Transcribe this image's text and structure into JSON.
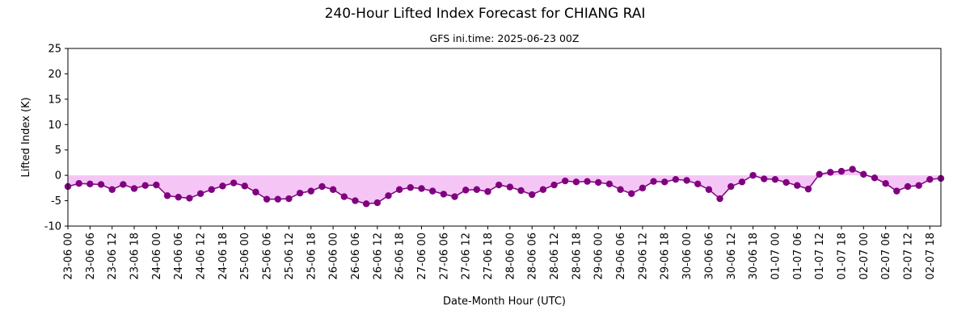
{
  "chart_data": {
    "type": "line",
    "title": "240-Hour Lifted Index Forecast for CHIANG RAI",
    "subtitle": "GFS ini.time: 2025-06-23 00Z",
    "xlabel": "Date-Month Hour (UTC)",
    "ylabel": "Lifted Index (K)",
    "ylim": [
      -10,
      25
    ],
    "yticks": [
      -10,
      -5,
      0,
      5,
      10,
      15,
      20,
      25
    ],
    "xticks": [
      "23-06 00",
      "23-06 06",
      "23-06 12",
      "23-06 18",
      "24-06 00",
      "24-06 06",
      "24-06 12",
      "24-06 18",
      "25-06 00",
      "25-06 06",
      "25-06 12",
      "25-06 18",
      "26-06 00",
      "26-06 06",
      "26-06 12",
      "26-06 18",
      "27-06 00",
      "27-06 06",
      "27-06 12",
      "27-06 18",
      "28-06 00",
      "28-06 06",
      "28-06 12",
      "28-06 18",
      "29-06 00",
      "29-06 06",
      "29-06 12",
      "29-06 18",
      "30-06 00",
      "30-06 06",
      "30-06 12",
      "30-06 18",
      "01-07 00",
      "01-07 06",
      "01-07 12",
      "01-07 18",
      "02-07 00",
      "02-07 06",
      "02-07 12",
      "02-07 18"
    ],
    "step_hours": 3,
    "values": [
      -2.2,
      -1.6,
      -1.7,
      -1.8,
      -2.8,
      -1.8,
      -2.6,
      -2.0,
      -1.9,
      -4.0,
      -4.3,
      -4.5,
      -3.6,
      -2.8,
      -2.1,
      -1.5,
      -2.1,
      -3.3,
      -4.7,
      -4.7,
      -4.6,
      -3.5,
      -3.1,
      -2.2,
      -2.8,
      -4.2,
      -5.0,
      -5.6,
      -5.4,
      -4.0,
      -2.8,
      -2.4,
      -2.6,
      -3.1,
      -3.7,
      -4.2,
      -2.9,
      -2.8,
      -3.2,
      -1.9,
      -2.3,
      -3.0,
      -3.8,
      -2.8,
      -1.9,
      -1.1,
      -1.3,
      -1.2,
      -1.4,
      -1.7,
      -2.8,
      -3.6,
      -2.5,
      -1.2,
      -1.3,
      -0.8,
      -1.0,
      -1.7,
      -2.8,
      -4.6,
      -2.2,
      -1.3,
      0.0,
      -0.7,
      -0.8,
      -1.4,
      -2.0,
      -2.7,
      0.2,
      0.6,
      0.8,
      1.2,
      0.2,
      -0.5,
      -1.6,
      -3.1,
      -2.2,
      -2.0,
      -0.8,
      -0.6
    ],
    "line_color": "#800080",
    "fill_color": "#f5c6f5",
    "grid": false
  }
}
